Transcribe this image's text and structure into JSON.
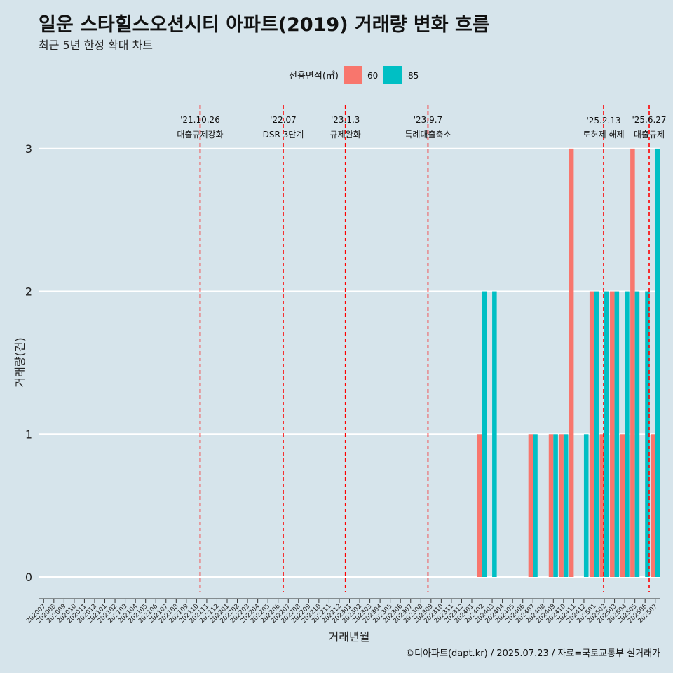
{
  "chart_data": {
    "type": "bar",
    "title": "일운 스타힐스오션시티 아파트(2019) 거래량 변화 흐름",
    "subtitle": "최근 5년 한정 확대 차트",
    "xlabel": "거래년월",
    "ylabel": "거래량(건)",
    "ylim": [
      0,
      3
    ],
    "yticks": [
      0,
      1,
      2,
      3
    ],
    "legend": {
      "title": "전용면적(㎡)",
      "position": "top"
    },
    "categories": [
      "202007",
      "202008",
      "202009",
      "202010",
      "202011",
      "202012",
      "202101",
      "202102",
      "202103",
      "202104",
      "202105",
      "202106",
      "202107",
      "202108",
      "202109",
      "202110",
      "202111",
      "202112",
      "202201",
      "202202",
      "202203",
      "202204",
      "202205",
      "202206",
      "202207",
      "202208",
      "202209",
      "202210",
      "202211",
      "202212",
      "202301",
      "202302",
      "202303",
      "202304",
      "202305",
      "202306",
      "202307",
      "202308",
      "202309",
      "202310",
      "202311",
      "202312",
      "202401",
      "202402",
      "202403",
      "202404",
      "202405",
      "202406",
      "202407",
      "202408",
      "202409",
      "202410",
      "202411",
      "202412",
      "202501",
      "202502",
      "202503",
      "202504",
      "202505",
      "202506",
      "202507"
    ],
    "series": [
      {
        "name": "60",
        "color": "#f8766d",
        "values": {
          "202402": 1,
          "202407": 1,
          "202409": 1,
          "202410": 1,
          "202411": 3,
          "202501": 2,
          "202502": 1,
          "202503": 2,
          "202504": 1,
          "202505": 3,
          "202507": 1
        }
      },
      {
        "name": "85",
        "color": "#00bfc4",
        "values": {
          "202402": 2,
          "202403": 2,
          "202407": 1,
          "202409": 1,
          "202410": 1,
          "202412": 1,
          "202501": 2,
          "202502": 2,
          "202503": 2,
          "202504": 2,
          "202505": 2,
          "202506": 2,
          "202507": 3
        }
      }
    ],
    "events": [
      {
        "date": "'21.10.26",
        "label": "대출규제강화",
        "category": "202110",
        "offset": 0.85
      },
      {
        "date": "'22.07",
        "label": "DSR 3단계",
        "category": "202207",
        "offset": 0.0
      },
      {
        "date": "'23.1.3",
        "label": "규제완화",
        "category": "202301",
        "offset": 0.1
      },
      {
        "date": "'23.9.7",
        "label": "특례대출축소",
        "category": "202309",
        "offset": 0.2
      },
      {
        "date": "'25.2.13",
        "label": "토허제 해제",
        "category": "202502",
        "offset": 0.43
      },
      {
        "date": "'25.6.27",
        "label": "대출규제",
        "category": "202506",
        "offset": 0.9
      }
    ],
    "grid": true
  },
  "caption": "©디아파트(dapt.kr) / 2025.07.23 / 자료=국토교통부 실거래가"
}
